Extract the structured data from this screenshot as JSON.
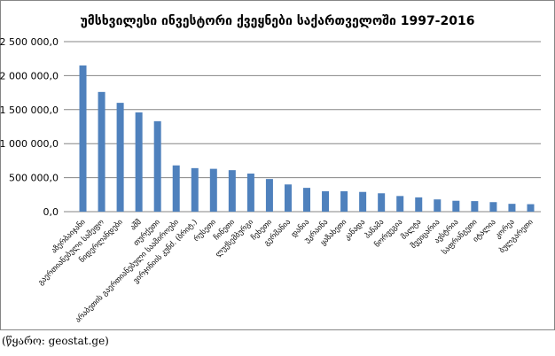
{
  "source_note": "(წყარო: geostat.ge)",
  "colors": {
    "bar": "#4f81bd",
    "axis": "#868686",
    "grid": "#868686",
    "border": "#868686"
  },
  "chart_data": {
    "type": "bar",
    "title": "უმსხვილესი ინვესტორი ქვეყნები საქართველოში 1997-2016",
    "xlabel": "",
    "ylabel": "",
    "ylim": [
      0,
      2500000
    ],
    "yticks": [
      0,
      500000,
      1000000,
      1500000,
      2000000,
      2500000
    ],
    "ytick_labels": [
      "0,0",
      "500 000,0",
      "1 000 000,0",
      "1 500 000,0",
      "2 000 000,0",
      "2 500 000,0"
    ],
    "grid": true,
    "categories": [
      "აზერბაიჯანი",
      "გაერთიანებული სამეფო",
      "ნიდერლანდები",
      "აშშ",
      "თურქეთი",
      "არაბეთის გაერთიანებული საამიროები",
      "ვირჯინიის კუნძ. (ბრიტ.)",
      "რუსეთი",
      "ჩინეთი",
      "ლუქსემბურგი",
      "ჩეხეთი",
      "გერმანია",
      "დანია",
      "უკრაინა",
      "ყაზახეთი",
      "კანადა",
      "პანამა",
      "ნორვეგია",
      "მალტა",
      "შვეიცარია",
      "ავსტრია",
      "საფრანგეთი",
      "იტალია",
      "კორეა",
      "ბულგარეთი"
    ],
    "values": [
      2150000,
      1760000,
      1600000,
      1460000,
      1330000,
      680000,
      640000,
      630000,
      610000,
      560000,
      480000,
      400000,
      350000,
      300000,
      300000,
      290000,
      270000,
      230000,
      210000,
      180000,
      160000,
      155000,
      140000,
      115000,
      110000
    ]
  }
}
